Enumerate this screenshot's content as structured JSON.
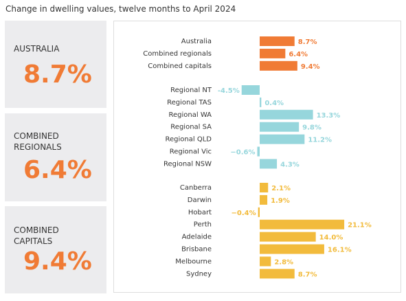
{
  "title": "Change in dwelling values, twelve months to April 2024",
  "panels": [
    {
      "label": "AUSTRALIA",
      "value": "8.7%"
    },
    {
      "label": "COMBINED REGIONALS",
      "value": "6.4%"
    },
    {
      "label": "COMBINED CAPITALS",
      "value": "9.4%"
    }
  ],
  "chart_data": {
    "type": "bar",
    "orientation": "horizontal",
    "xlim": [
      -6,
      24
    ],
    "series": [
      {
        "color": "#f07b35",
        "categories": [
          "Australia",
          "Combined regionals",
          "Combined capitals"
        ],
        "values": [
          8.7,
          6.4,
          9.4
        ],
        "value_labels": [
          "8.7%",
          "6.4%",
          "9.4%"
        ]
      },
      {
        "color": "#96d6dc",
        "categories": [
          "Regional NT",
          "Regional TAS",
          "Regional WA",
          "Regional SA",
          "Regional QLD",
          "Regional Vic",
          "Regional NSW"
        ],
        "values": [
          -4.5,
          0.4,
          13.3,
          9.8,
          11.2,
          -0.6,
          4.3
        ],
        "value_labels": [
          "-4.5%",
          "0.4%",
          "13.3%",
          "9.8%",
          "11.2%",
          "−0.6%",
          "4.3%"
        ]
      },
      {
        "color": "#f2bb3c",
        "categories": [
          "Canberra",
          "Darwin",
          "Hobart",
          "Perth",
          "Adelaide",
          "Brisbane",
          "Melbourne",
          "Sydney"
        ],
        "values": [
          2.1,
          1.9,
          -0.4,
          21.1,
          14.0,
          16.1,
          2.8,
          8.7
        ],
        "value_labels": [
          "2.1%",
          "1.9%",
          "−0.4%",
          "21.1%",
          "14.0%",
          "16.1%",
          "2.8%",
          "8.7%"
        ]
      }
    ]
  }
}
